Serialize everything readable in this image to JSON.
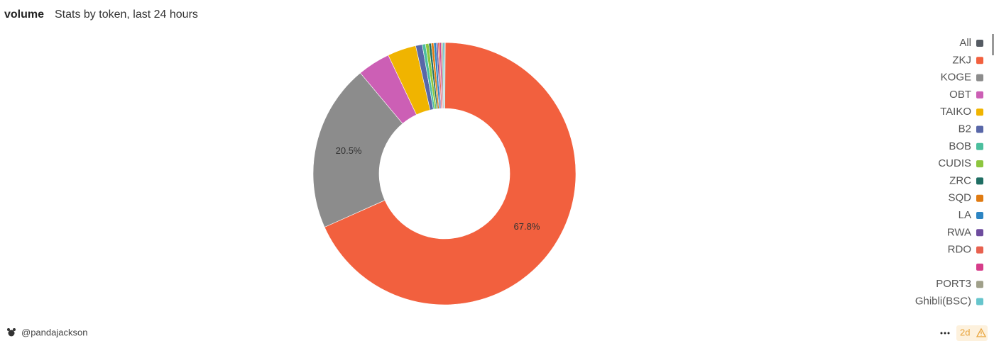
{
  "chart_data": {
    "type": "pie",
    "title": "volume",
    "subtitle": "Stats by token, last 24 hours",
    "series": [
      {
        "name": "All",
        "color": "#555b63",
        "value": 0.1
      },
      {
        "name": "ZKJ",
        "color": "#f2603e",
        "value": 67.8
      },
      {
        "name": "KOGE",
        "color": "#8c8c8c",
        "value": 20.5
      },
      {
        "name": "OBT",
        "color": "#cc5fb5",
        "value": 4.0
      },
      {
        "name": "TAIKO",
        "color": "#f0b400",
        "value": 3.5
      },
      {
        "name": "B2",
        "color": "#5867a8",
        "value": 0.8
      },
      {
        "name": "BOB",
        "color": "#4cbf9e",
        "value": 0.4
      },
      {
        "name": "CUDIS",
        "color": "#8dc63f",
        "value": 0.4
      },
      {
        "name": "ZRC",
        "color": "#1f6e63",
        "value": 0.3
      },
      {
        "name": "SQD",
        "color": "#e07b12",
        "value": 0.3
      },
      {
        "name": "LA",
        "color": "#2d85c3",
        "value": 0.3
      },
      {
        "name": "RWA",
        "color": "#6e4c9e",
        "value": 0.2
      },
      {
        "name": "RDO",
        "color": "#e8614f",
        "value": 0.2
      },
      {
        "name": null,
        "color": "#d63d8a",
        "value": 0.2
      },
      {
        "name": "PORT3",
        "color": "#a0a08a",
        "value": 0.2
      },
      {
        "name": "Ghibli(BSC)",
        "color": "#66c5cc",
        "value": 0.2
      }
    ],
    "value_labels": [
      null,
      "67.8%",
      "20.5%",
      null,
      null,
      null,
      null,
      null,
      null,
      null,
      null,
      null,
      null,
      null,
      null,
      null
    ],
    "legend": "right"
  },
  "footer": {
    "user": "@pandajackson",
    "age": "2d"
  }
}
